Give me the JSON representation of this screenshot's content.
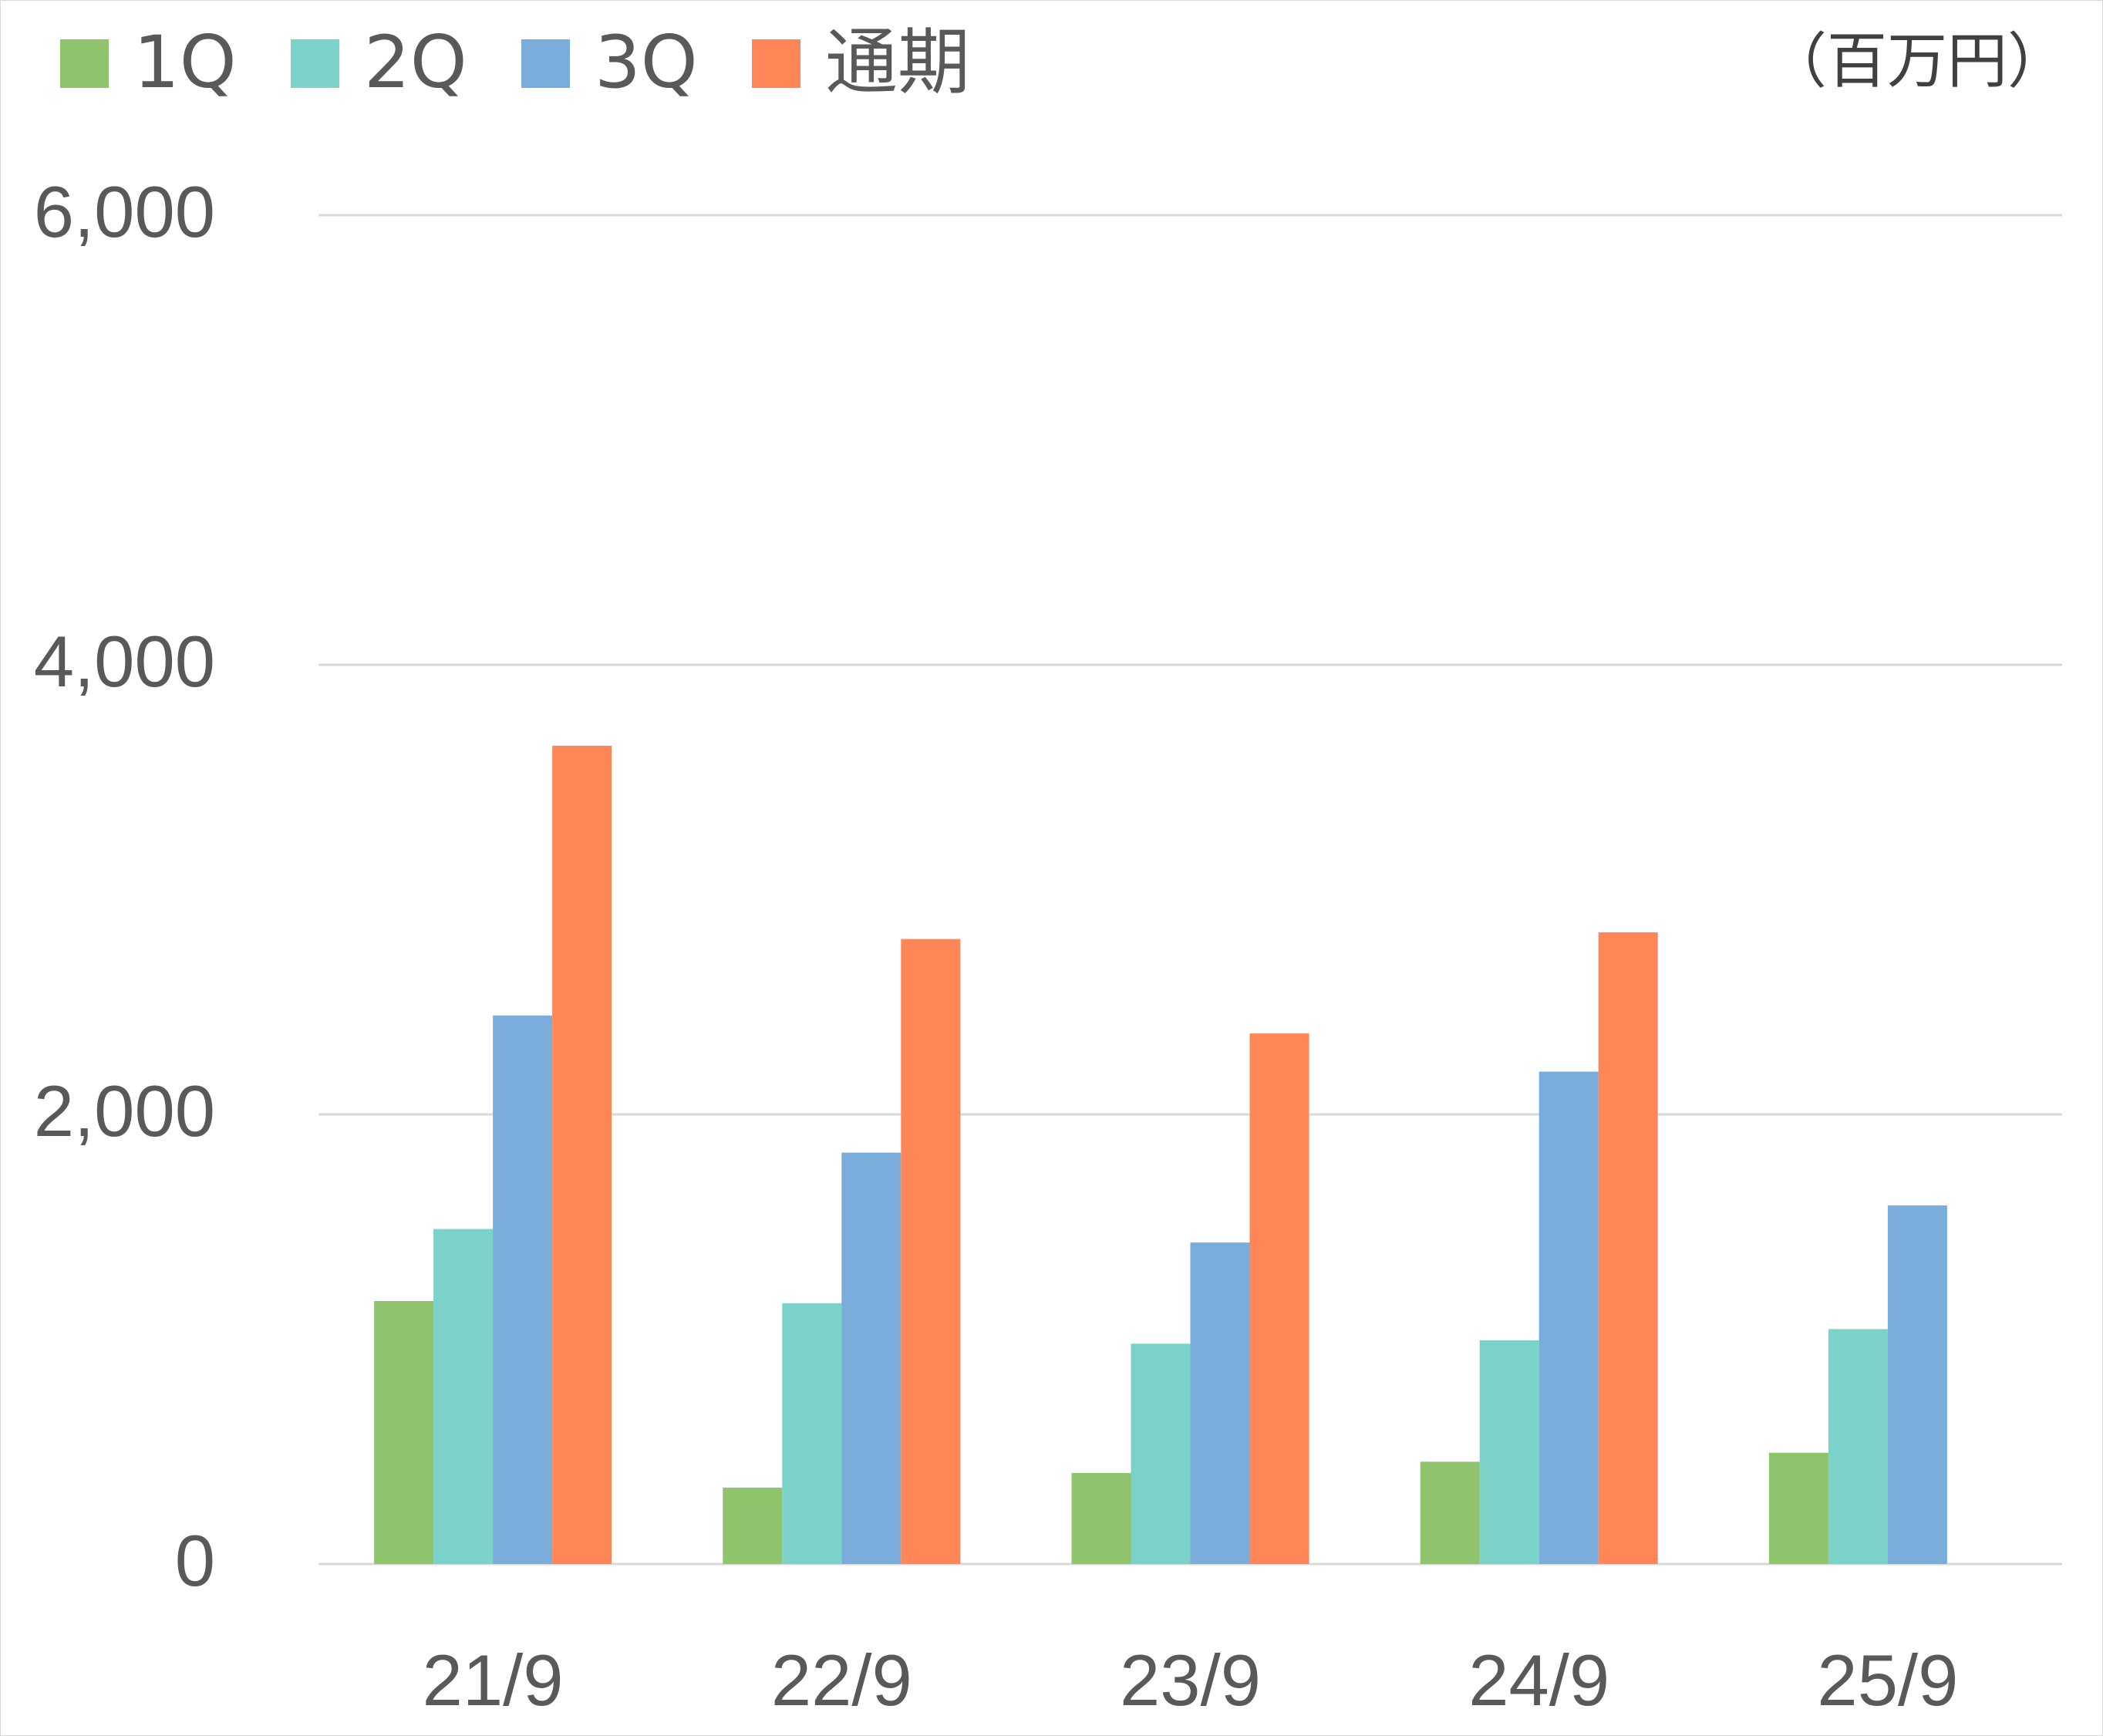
{
  "chart_data": {
    "type": "bar",
    "unit_label": "（百万円）",
    "categories": [
      "21/9",
      "22/9",
      "23/9",
      "24/9",
      "25/9"
    ],
    "series": [
      {
        "name": "1Q",
        "color": "#8fc36c",
        "values": [
          1170,
          340,
          405,
          455,
          495
        ]
      },
      {
        "name": "2Q",
        "color": "#7ad2c8",
        "values": [
          1490,
          1160,
          980,
          995,
          1045
        ]
      },
      {
        "name": "3Q",
        "color": "#7aacdc",
        "values": [
          2440,
          1830,
          1430,
          2190,
          1595
        ]
      },
      {
        "name": "通期",
        "color": "#ff8757",
        "values": [
          3640,
          2780,
          2360,
          2810,
          null
        ]
      }
    ],
    "yticks": [
      "0",
      "2,000",
      "4,000",
      "6,000"
    ],
    "ylim": [
      0,
      6000
    ],
    "grid": true,
    "legend_position": "top-left"
  }
}
